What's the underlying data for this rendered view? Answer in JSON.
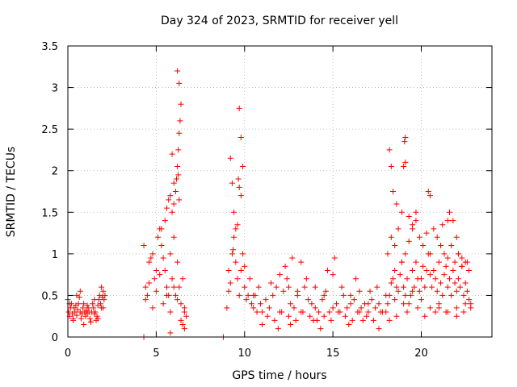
{
  "chart_data": {
    "type": "scatter",
    "title": "Day 324 of 2023, SRMTID for receiver yell",
    "xlabel": "GPS time / hours",
    "ylabel": "SRMTID / TECUs",
    "xlim": [
      0,
      24
    ],
    "ylim": [
      0,
      3.5
    ],
    "xticks": [
      0,
      5,
      10,
      15,
      20
    ],
    "xtick_labels": [
      "0",
      "5",
      "10",
      "15",
      "20"
    ],
    "yticks": [
      0,
      0.5,
      1,
      1.5,
      2,
      2.5,
      3,
      3.5
    ],
    "ytick_labels": [
      "0",
      "0.5",
      "1",
      "1.5",
      "2",
      "2.5",
      "3",
      "3.5"
    ],
    "grid": true,
    "marker": "+",
    "color": "#ff0000",
    "series": [
      {
        "name": "SRMTID",
        "x": [
          0.0,
          0.05,
          0.1,
          0.15,
          0.2,
          0.25,
          0.3,
          0.35,
          0.4,
          0.45,
          0.5,
          0.55,
          0.6,
          0.65,
          0.7,
          0.75,
          0.8,
          0.85,
          0.9,
          0.95,
          1.0,
          1.05,
          1.1,
          1.15,
          1.2,
          1.25,
          1.3,
          1.35,
          1.4,
          1.45,
          1.5,
          1.55,
          1.6,
          1.65,
          1.7,
          1.75,
          1.8,
          1.85,
          1.9,
          1.95,
          2.0,
          2.05,
          2.1,
          0.1,
          0.3,
          0.5,
          0.7,
          0.9,
          1.1,
          1.3,
          1.5,
          1.7,
          1.9,
          2.0,
          4.3,
          8.8,
          4.3,
          4.4,
          4.5,
          4.6,
          4.7,
          4.8,
          4.9,
          5.0,
          5.1,
          5.2,
          5.3,
          5.4,
          5.5,
          5.6,
          5.7,
          5.8,
          5.9,
          6.0,
          6.1,
          6.2,
          6.3,
          6.4,
          6.5,
          6.6,
          6.7,
          4.4,
          4.6,
          4.8,
          5.0,
          5.2,
          5.4,
          5.6,
          5.8,
          6.0,
          6.2,
          6.4,
          6.6,
          5.3,
          5.5,
          5.6,
          5.7,
          5.8,
          5.9,
          6.0,
          6.1,
          6.15,
          6.2,
          6.25,
          6.3,
          6.35,
          6.4,
          6.3,
          6.2,
          6.25,
          6.3,
          6.5,
          6.6,
          5.8,
          5.9,
          6.0,
          9.0,
          9.1,
          9.2,
          9.3,
          9.4,
          9.5,
          9.6,
          9.7,
          9.8,
          9.9,
          10.0,
          10.1,
          10.2,
          10.3,
          10.4,
          10.5,
          10.6,
          10.7,
          10.8,
          10.9,
          11.0,
          9.2,
          9.3,
          9.4,
          9.6,
          9.7,
          9.8,
          9.9,
          9.65,
          9.7,
          9.35,
          9.5,
          10.5,
          9.1,
          9.8,
          10.0,
          11.2,
          11.4,
          11.6,
          11.8,
          12.0,
          12.2,
          12.4,
          12.6,
          12.8,
          13.0,
          13.2,
          13.4,
          13.6,
          13.8,
          14.0,
          14.2,
          14.4,
          14.6,
          14.8,
          15.0,
          15.2,
          15.4,
          15.6,
          15.8,
          16.0,
          16.2,
          16.4,
          16.6,
          16.8,
          17.0,
          17.2,
          17.4,
          17.6,
          17.8,
          11.3,
          11.7,
          12.1,
          12.5,
          12.9,
          13.3,
          13.7,
          14.1,
          14.5,
          14.9,
          15.3,
          15.7,
          16.1,
          16.5,
          16.9,
          17.3,
          17.7,
          11.5,
          12.0,
          12.5,
          13.0,
          13.5,
          14.0,
          14.5,
          15.0,
          15.5,
          16.0,
          16.5,
          17.0,
          17.5,
          12.3,
          12.7,
          13.2,
          14.7,
          15.1,
          16.3,
          17.1,
          11.0,
          11.9,
          12.6,
          13.9,
          14.3,
          15.9,
          16.7,
          17.6,
          18.0,
          18.1,
          18.2,
          18.3,
          18.4,
          18.5,
          18.6,
          18.7,
          18.8,
          18.9,
          19.0,
          19.1,
          19.2,
          19.3,
          19.4,
          19.5,
          19.6,
          19.7,
          19.8,
          19.9,
          20.0,
          20.1,
          20.2,
          20.3,
          20.4,
          20.5,
          20.6,
          20.7,
          20.8,
          20.9,
          21.0,
          21.1,
          21.2,
          21.3,
          21.4,
          21.5,
          21.6,
          21.7,
          21.8,
          21.9,
          22.0,
          22.1,
          22.2,
          22.3,
          22.4,
          22.5,
          22.6,
          22.7,
          22.8,
          18.1,
          18.3,
          18.5,
          18.7,
          18.9,
          19.1,
          19.3,
          19.5,
          19.7,
          19.9,
          20.1,
          20.3,
          20.5,
          20.7,
          20.9,
          21.1,
          21.3,
          21.5,
          21.7,
          21.9,
          22.1,
          22.3,
          22.5,
          22.7,
          18.2,
          18.3,
          18.4,
          18.6,
          18.9,
          19.0,
          19.05,
          19.1,
          19.1,
          19.3,
          19.5,
          19.7,
          20.4,
          20.5,
          21.2,
          21.5,
          21.6,
          21.8,
          22.0,
          22.1,
          22.3,
          22.6,
          18.2,
          18.6,
          19.2,
          19.8,
          20.2,
          20.8,
          21.0,
          21.4,
          22.0,
          22.4,
          22.8,
          18.0,
          18.5,
          19.0,
          19.5,
          20.0,
          20.5,
          21.0,
          21.5,
          22.0,
          22.5
        ],
        "y": [
          0.45,
          0.3,
          0.25,
          0.35,
          0.4,
          0.28,
          0.22,
          0.35,
          0.3,
          0.38,
          0.26,
          0.33,
          0.4,
          0.48,
          0.3,
          0.22,
          0.28,
          0.35,
          0.4,
          0.3,
          0.25,
          0.32,
          0.28,
          0.35,
          0.3,
          0.22,
          0.18,
          0.3,
          0.4,
          0.35,
          0.28,
          0.3,
          0.2,
          0.25,
          0.38,
          0.45,
          0.5,
          0.4,
          0.35,
          0.48,
          0.55,
          0.45,
          0.5,
          0.4,
          0.2,
          0.5,
          0.55,
          0.15,
          0.38,
          0.18,
          0.45,
          0.22,
          0.6,
          0.35,
          0.0,
          0.0,
          1.1,
          0.6,
          0.5,
          0.9,
          0.95,
          1.0,
          0.7,
          0.8,
          1.2,
          1.3,
          1.1,
          0.95,
          0.8,
          0.6,
          0.5,
          1.0,
          0.7,
          1.2,
          0.5,
          0.9,
          0.6,
          0.4,
          0.7,
          0.3,
          0.25,
          0.45,
          0.65,
          0.35,
          0.55,
          0.75,
          0.4,
          0.5,
          0.3,
          0.6,
          0.45,
          0.2,
          0.35,
          1.3,
          1.4,
          1.55,
          1.65,
          1.7,
          1.5,
          1.6,
          1.75,
          1.9,
          2.05,
          2.25,
          2.45,
          2.6,
          2.8,
          3.05,
          3.2,
          1.95,
          1.65,
          0.15,
          0.1,
          0.05,
          2.2,
          1.85,
          0.35,
          0.8,
          0.65,
          1.0,
          1.2,
          0.9,
          0.7,
          0.5,
          0.8,
          1.0,
          0.6,
          0.45,
          0.5,
          0.7,
          0.4,
          0.35,
          0.5,
          0.3,
          0.6,
          0.4,
          0.3,
          2.15,
          1.85,
          1.5,
          1.35,
          2.75,
          2.4,
          2.05,
          1.9,
          1.8,
          1.05,
          1.3,
          0.5,
          0.55,
          1.7,
          0.85,
          0.45,
          0.35,
          0.5,
          0.6,
          0.3,
          0.55,
          0.7,
          0.4,
          0.35,
          0.5,
          0.3,
          0.6,
          0.45,
          0.4,
          0.35,
          0.3,
          0.45,
          0.55,
          0.3,
          0.35,
          0.4,
          0.3,
          0.5,
          0.35,
          0.4,
          0.45,
          0.3,
          0.35,
          0.4,
          0.3,
          0.45,
          0.35,
          0.4,
          0.3,
          0.25,
          0.2,
          0.3,
          0.25,
          0.2,
          0.3,
          0.25,
          0.2,
          0.25,
          0.2,
          0.3,
          0.25,
          0.2,
          0.3,
          0.25,
          0.2,
          0.3,
          0.65,
          0.75,
          0.6,
          0.55,
          0.7,
          0.6,
          0.5,
          0.75,
          0.6,
          0.5,
          0.55,
          0.4,
          0.6,
          0.85,
          0.95,
          0.9,
          0.8,
          0.95,
          0.7,
          0.55,
          0.15,
          0.1,
          0.15,
          0.2,
          0.1,
          0.15,
          0.2,
          0.1,
          0.3,
          0.4,
          0.5,
          0.65,
          0.7,
          0.8,
          0.6,
          0.55,
          0.75,
          0.9,
          0.6,
          0.5,
          0.7,
          0.4,
          0.5,
          0.8,
          0.6,
          0.9,
          0.7,
          0.55,
          0.7,
          0.85,
          0.6,
          0.8,
          1.0,
          0.75,
          0.6,
          0.8,
          0.7,
          0.55,
          0.9,
          0.65,
          0.5,
          0.75,
          0.85,
          0.6,
          0.7,
          0.5,
          0.8,
          0.65,
          0.55,
          0.7,
          0.6,
          0.85,
          0.5,
          0.65,
          0.55,
          0.45,
          0.4,
          1.0,
          1.2,
          1.1,
          1.3,
          0.9,
          1.0,
          1.15,
          1.3,
          1.4,
          1.2,
          1.1,
          1.25,
          1.0,
          1.3,
          1.2,
          1.1,
          1.0,
          0.95,
          1.1,
          0.9,
          1.0,
          0.85,
          0.9,
          0.8,
          2.25,
          2.05,
          1.75,
          1.6,
          1.5,
          2.05,
          2.35,
          2.4,
          2.1,
          1.45,
          1.35,
          1.5,
          1.75,
          1.7,
          1.35,
          1.4,
          1.5,
          1.4,
          1.2,
          1.0,
          0.95,
          0.9,
          0.2,
          0.25,
          0.3,
          0.35,
          0.25,
          0.3,
          0.35,
          0.3,
          0.25,
          0.3,
          0.35,
          0.5,
          0.45,
          0.4,
          0.55,
          0.45,
          0.35,
          0.4,
          0.3,
          0.35,
          0.4
        ]
      }
    ]
  }
}
